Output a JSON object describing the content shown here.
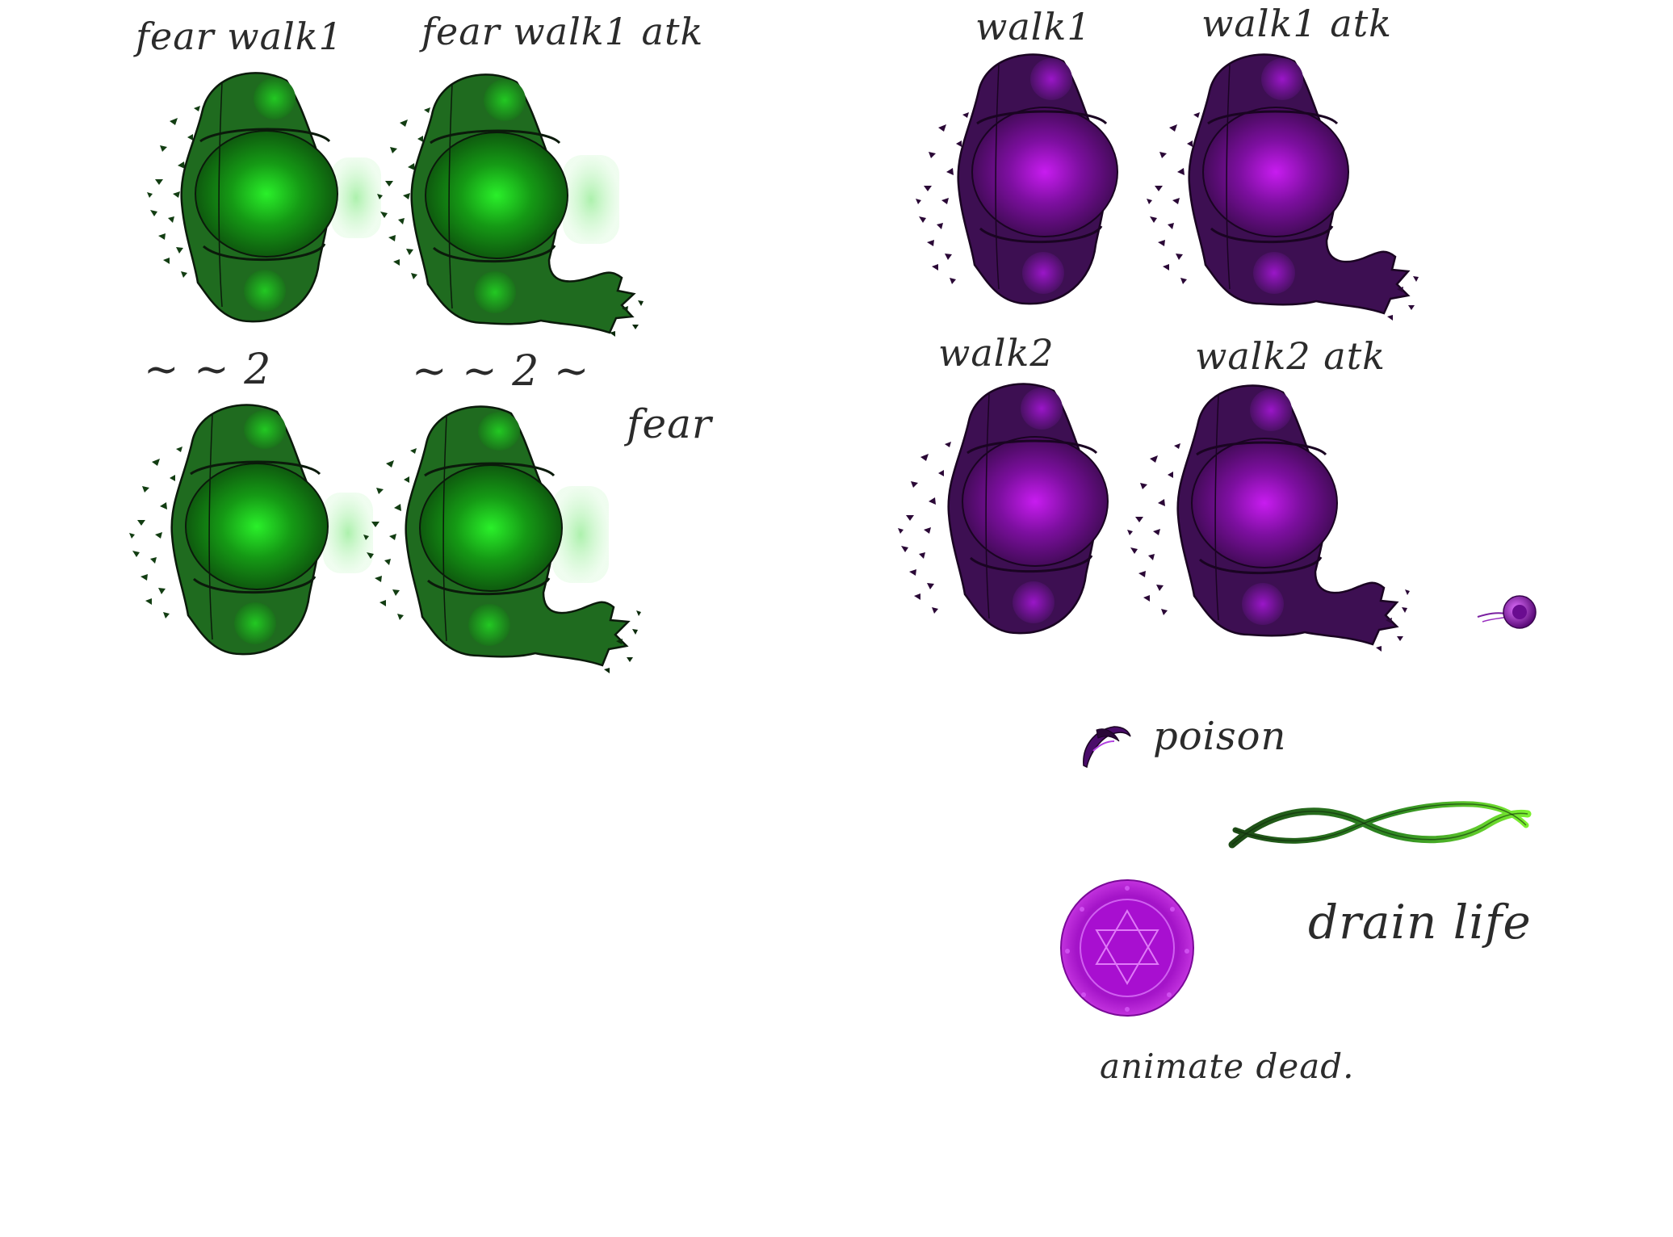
{
  "green_set": {
    "row1_left_label": "fear walk1",
    "row1_right_label": "fear walk1 atk",
    "row2_left_label": "~ ~ 2",
    "row2_right_label": "~ ~ 2 ~",
    "side_label": "fear",
    "body_color": "#1f6b1f",
    "glow_color": "#22d022",
    "outline_color": "#0b1a0b",
    "aura_color": "#b8f0b8"
  },
  "purple_set": {
    "row1_left_label": "walk1",
    "row1_right_label": "walk1 atk",
    "row2_left_label": "walk2",
    "row2_right_label": "walk2 atk",
    "body_color": "#3d0f52",
    "glow_color": "#b015e0",
    "outline_color": "#1a0422"
  },
  "abilities": {
    "poison_label": "poison",
    "drain_life_label": "drain life",
    "animate_dead_label": "animate dead."
  },
  "icons": {
    "poison": "poison-claw-icon",
    "drain_life": "drain-life-helix-icon",
    "animate_dead": "animate-dead-rune-circle-icon",
    "projectile": "poison-orb-projectile-icon"
  }
}
